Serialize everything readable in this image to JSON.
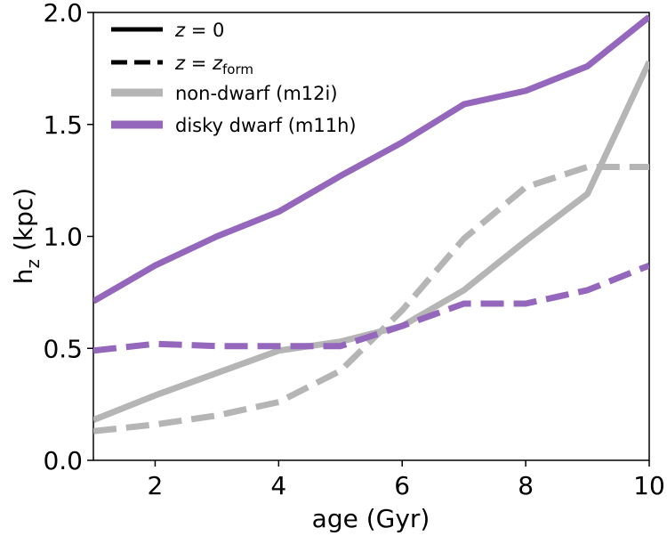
{
  "chart_data": {
    "type": "line",
    "xlabel": "age (Gyr)",
    "ylabel": "h",
    "ylabel_sub": "z",
    "ylabel_units": " (kpc)",
    "xlim": [
      1,
      10
    ],
    "ylim": [
      0,
      2.0
    ],
    "xticks": [
      2,
      4,
      6,
      8,
      10
    ],
    "yticks": [
      "0.0",
      "0.5",
      "1.0",
      "1.5",
      "2.0"
    ],
    "grid": false,
    "legend_position": "top-left",
    "x": [
      1,
      2,
      3,
      4,
      5,
      6,
      7,
      8,
      9,
      10
    ],
    "series": [
      {
        "name": "non-dwarf (m12i)",
        "color": "#b5b5b5",
        "style": "solid",
        "values": [
          0.18,
          0.29,
          0.39,
          0.49,
          0.53,
          0.6,
          0.76,
          0.98,
          1.19,
          1.78
        ]
      },
      {
        "name": "non-dwarf (m12i)",
        "color": "#b5b5b5",
        "style": "dashed",
        "values": [
          0.13,
          0.16,
          0.2,
          0.26,
          0.4,
          0.67,
          0.99,
          1.22,
          1.31,
          1.31
        ]
      },
      {
        "name": "disky dwarf (m11h)",
        "color": "#9467bd",
        "style": "solid",
        "values": [
          0.71,
          0.87,
          1.0,
          1.11,
          1.27,
          1.42,
          1.59,
          1.65,
          1.76,
          1.98
        ]
      },
      {
        "name": "disky dwarf (m11h)",
        "color": "#9467bd",
        "style": "dashed",
        "values": [
          0.49,
          0.52,
          0.51,
          0.51,
          0.51,
          0.6,
          0.7,
          0.7,
          0.76,
          0.87
        ]
      }
    ],
    "legend": [
      {
        "label_var": "z",
        "label_rest": " = 0",
        "style": "solid",
        "color": "#000000"
      },
      {
        "label_var": "z",
        "label_rest": " = ",
        "label_var2": "z",
        "label_sub": "form",
        "style": "dashed",
        "color": "#000000"
      },
      {
        "label": "non-dwarf (m12i)",
        "style": "solid",
        "color": "#b5b5b5"
      },
      {
        "label": "disky dwarf (m11h)",
        "style": "solid",
        "color": "#9467bd"
      }
    ]
  }
}
